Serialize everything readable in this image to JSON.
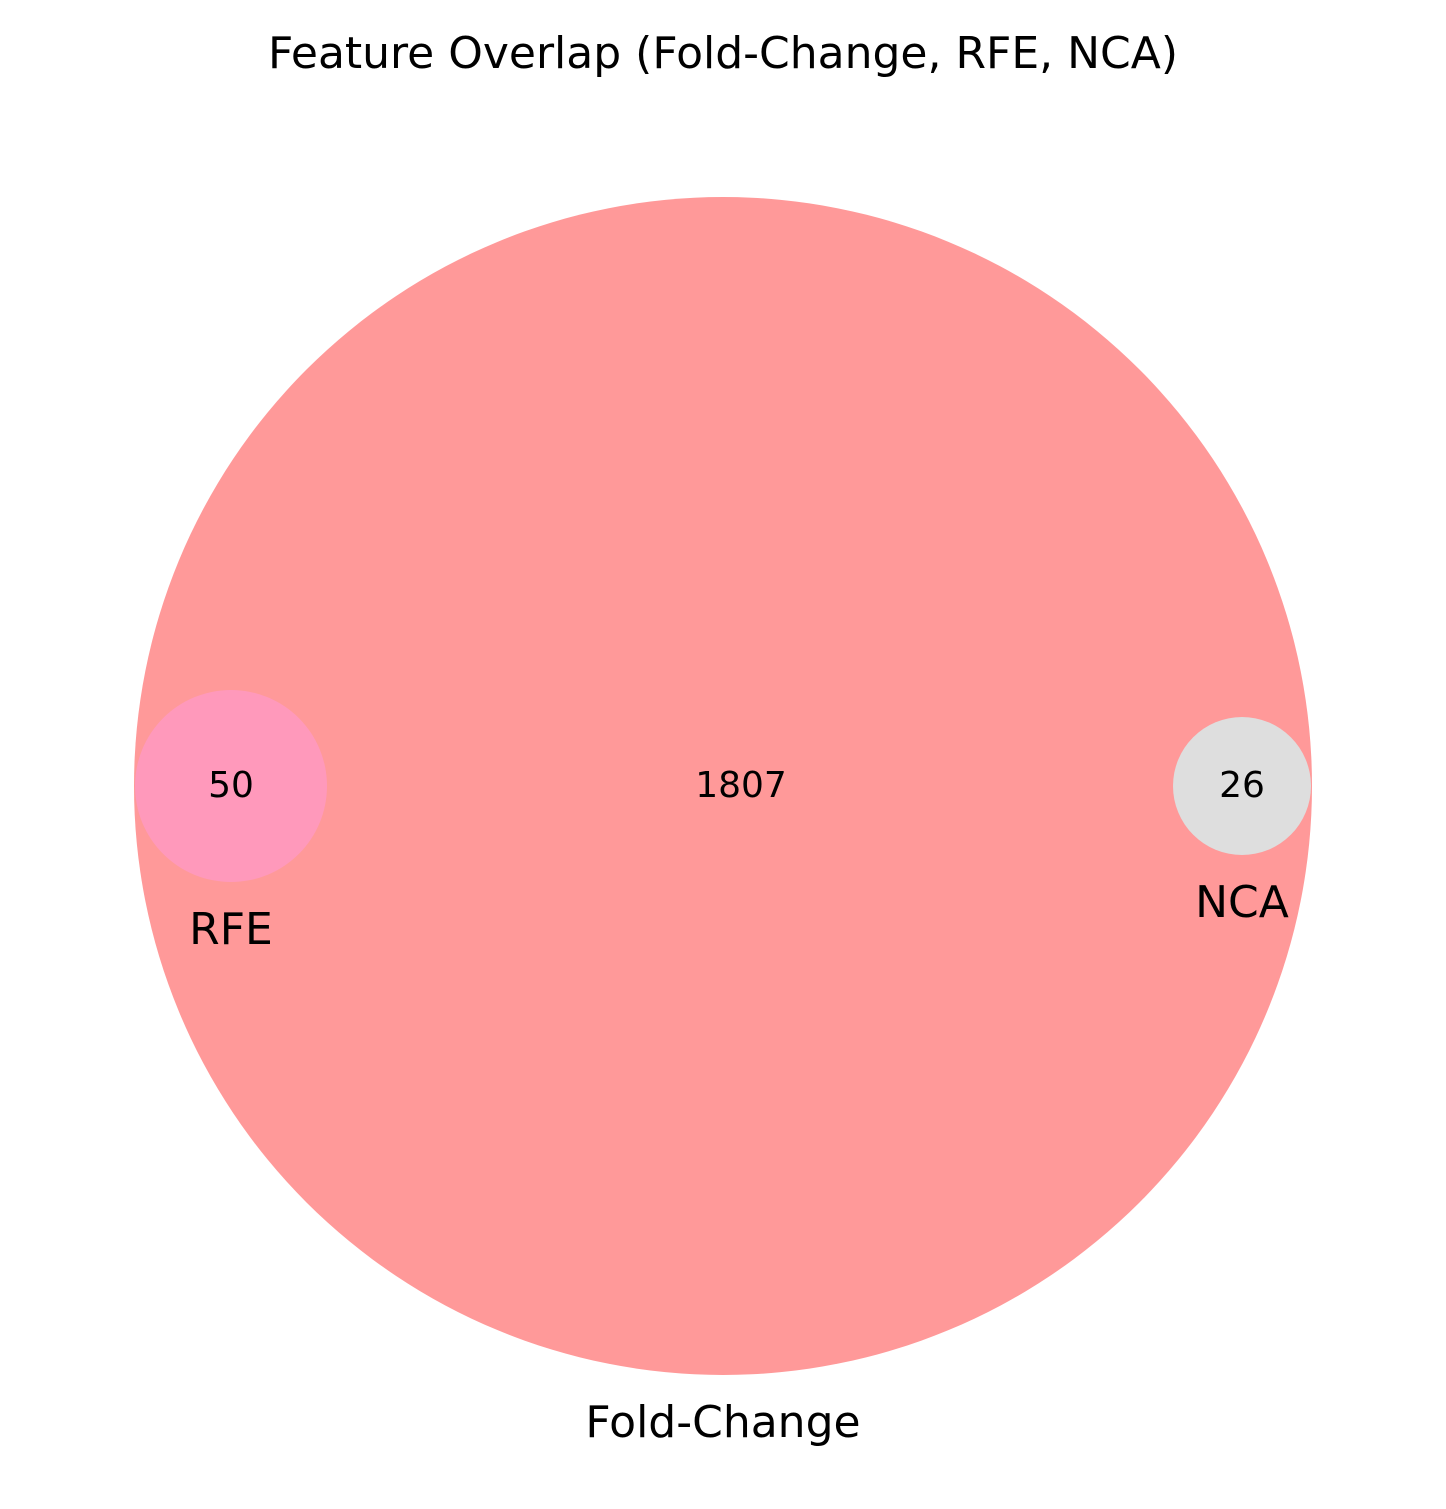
{
  "title": "Feature Overlap (Fold-Change, RFE, NCA)",
  "sets": {
    "fold_change": {
      "label": "Fold-Change",
      "color": "#ff9999",
      "only_count": "1807"
    },
    "rfe": {
      "label": "RFE",
      "color": "#ff99bb",
      "count": "50"
    },
    "nca": {
      "label": "NCA",
      "color": "#dedede",
      "count": "26"
    }
  }
}
